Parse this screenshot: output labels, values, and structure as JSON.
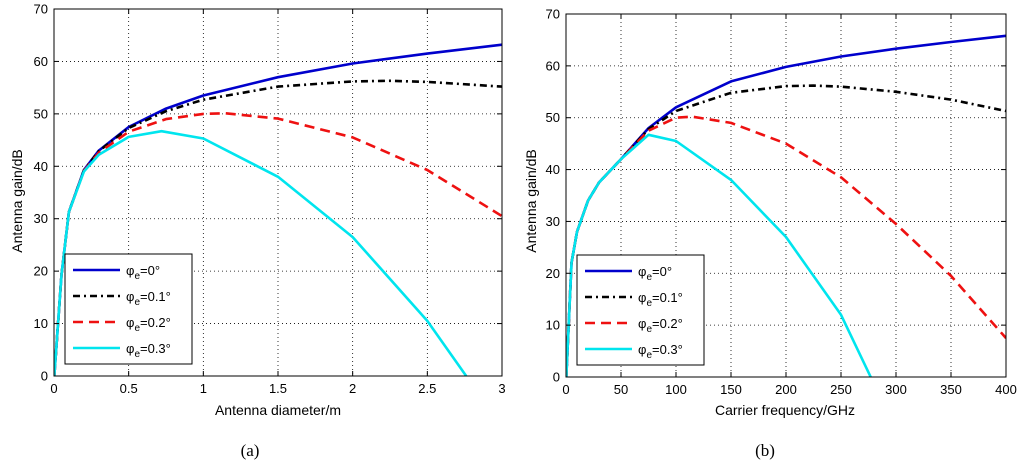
{
  "chart_data": [
    {
      "type": "line",
      "caption": "(a)",
      "xlabel": "Antenna diameter/m",
      "ylabel": "Antenna gain/dB",
      "xlim": [
        0,
        3
      ],
      "ylim": [
        0,
        70
      ],
      "xticks": [
        "0",
        "0.5",
        "1",
        "1.5",
        "2",
        "2.5",
        "3"
      ],
      "yticks": [
        "0",
        "10",
        "20",
        "30",
        "40",
        "50",
        "60",
        "70"
      ],
      "grid": true,
      "legend_position": "bottom-left",
      "series": [
        {
          "name_base": "φ",
          "name_sub": "e",
          "name_val": "=0°",
          "color": "#0000cc",
          "dash": "solid",
          "x": [
            0.002,
            0.05,
            0.1,
            0.2,
            0.3,
            0.5,
            0.75,
            1.0,
            1.5,
            2.0,
            2.5,
            3.0
          ],
          "y": [
            0,
            19.3,
            31.3,
            39.3,
            43.0,
            47.5,
            51.0,
            53.5,
            57.0,
            59.6,
            61.5,
            63.2
          ]
        },
        {
          "name_base": "φ",
          "name_sub": "e",
          "name_val": "=0.1°",
          "color": "#000000",
          "dash": "dashdot",
          "x": [
            0.002,
            0.05,
            0.1,
            0.2,
            0.3,
            0.5,
            0.75,
            1.0,
            1.5,
            2.0,
            2.25,
            2.5,
            3.0
          ],
          "y": [
            0,
            19.3,
            31.3,
            39.2,
            42.9,
            47.3,
            50.5,
            52.7,
            55.2,
            56.2,
            56.3,
            56.1,
            55.2
          ]
        },
        {
          "name_base": "φ",
          "name_sub": "e",
          "name_val": "=0.2°",
          "color": "#ee1111",
          "dash": "dashed",
          "x": [
            0.002,
            0.05,
            0.1,
            0.2,
            0.3,
            0.5,
            0.75,
            1.0,
            1.15,
            1.5,
            2.0,
            2.5,
            3.0
          ],
          "y": [
            0,
            19.3,
            31.3,
            39.1,
            42.6,
            46.6,
            49.0,
            50.0,
            50.1,
            49.1,
            45.5,
            39.3,
            30.5
          ]
        },
        {
          "name_base": "φ",
          "name_sub": "e",
          "name_val": "=0.3°",
          "color": "#00e5ee",
          "dash": "solid",
          "x": [
            0.002,
            0.05,
            0.1,
            0.2,
            0.3,
            0.5,
            0.72,
            1.0,
            1.5,
            2.0,
            2.5,
            2.76
          ],
          "y": [
            0,
            19.3,
            31.3,
            39.0,
            42.2,
            45.6,
            46.7,
            45.3,
            38.0,
            26.5,
            10.5,
            0
          ]
        }
      ]
    },
    {
      "type": "line",
      "caption": "(b)",
      "xlabel": "Carrier frequency/GHz",
      "ylabel": "Antenna gain/dB",
      "xlim": [
        0,
        400
      ],
      "ylim": [
        0,
        70
      ],
      "xticks": [
        "0",
        "50",
        "100",
        "150",
        "200",
        "250",
        "300",
        "350",
        "400"
      ],
      "yticks": [
        "0",
        "10",
        "20",
        "30",
        "40",
        "50",
        "60",
        "70"
      ],
      "grid": true,
      "legend_position": "bottom-left",
      "series": [
        {
          "name_base": "φ",
          "name_sub": "e",
          "name_val": "=0°",
          "color": "#0000cc",
          "dash": "solid",
          "x": [
            0.3,
            5,
            10,
            20,
            30,
            50,
            75,
            100,
            150,
            200,
            250,
            300,
            350,
            400
          ],
          "y": [
            0,
            22.0,
            28.0,
            34.0,
            37.5,
            42.0,
            48.0,
            52.0,
            57.0,
            59.8,
            61.8,
            63.3,
            64.6,
            65.8
          ]
        },
        {
          "name_base": "φ",
          "name_sub": "e",
          "name_val": "=0.1°",
          "color": "#000000",
          "dash": "dashdot",
          "x": [
            0.3,
            5,
            10,
            20,
            30,
            50,
            75,
            100,
            150,
            200,
            225,
            250,
            300,
            350,
            400
          ],
          "y": [
            0,
            22.0,
            28.0,
            34.0,
            37.5,
            42.0,
            47.8,
            51.3,
            54.8,
            56.1,
            56.2,
            56.0,
            55.0,
            53.5,
            51.3
          ]
        },
        {
          "name_base": "φ",
          "name_sub": "e",
          "name_val": "=0.2°",
          "color": "#ee1111",
          "dash": "dashed",
          "x": [
            0.3,
            5,
            10,
            20,
            30,
            50,
            75,
            100,
            115,
            150,
            200,
            250,
            300,
            350,
            400
          ],
          "y": [
            0,
            22.0,
            28.0,
            34.0,
            37.5,
            42.0,
            47.5,
            50.0,
            50.2,
            49.0,
            45.0,
            38.5,
            29.5,
            19.5,
            7.5
          ]
        },
        {
          "name_base": "φ",
          "name_sub": "e",
          "name_val": "=0.3°",
          "color": "#00e5ee",
          "dash": "solid",
          "x": [
            0.3,
            5,
            10,
            20,
            30,
            50,
            75,
            100,
            150,
            200,
            250,
            277
          ],
          "y": [
            0,
            22.0,
            28.0,
            34.0,
            37.5,
            42.0,
            46.7,
            45.5,
            38.0,
            27.0,
            12.0,
            0
          ]
        }
      ]
    }
  ]
}
